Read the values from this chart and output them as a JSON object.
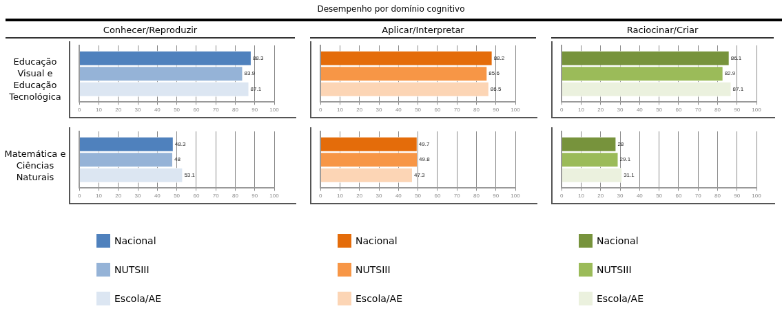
{
  "chart_data": [
    {
      "type": "bar",
      "orientation": "horizontal",
      "title": "Conhecer/Reproduzir",
      "ylabel": "Educação Visual e Educação Tecnológica",
      "annotations": [
        "Desempenho por domínio cognitivo"
      ],
      "categories": [
        null
      ],
      "xlim": [
        0,
        100
      ],
      "xticks": [
        0,
        10,
        20,
        30,
        40,
        50,
        60,
        70,
        80,
        90,
        100
      ],
      "grid": "x",
      "tick_labels": "x",
      "data_labels": true,
      "series": [
        {
          "color": "#4f81bd",
          "values": [
            88.3
          ]
        },
        {
          "color": "#95b3d7",
          "values": [
            83.9
          ]
        },
        {
          "color": "#dce6f2",
          "values": [
            87.1
          ]
        }
      ]
    },
    {
      "type": "bar",
      "orientation": "horizontal",
      "title": "Aplicar/Interpretar",
      "categories": [
        null
      ],
      "xlim": [
        0,
        100
      ],
      "xticks": [
        0,
        10,
        20,
        30,
        40,
        50,
        60,
        70,
        80,
        90,
        100
      ],
      "grid": "x",
      "tick_labels": "x",
      "data_labels": true,
      "series": [
        {
          "color": "#e46c0a",
          "values": [
            88.2
          ]
        },
        {
          "color": "#f79646",
          "values": [
            85.6
          ]
        },
        {
          "color": "#fcd5b5",
          "values": [
            86.5
          ]
        }
      ]
    },
    {
      "type": "bar",
      "orientation": "horizontal",
      "title": "Raciocinar/Criar",
      "categories": [
        null
      ],
      "xlim": [
        0,
        100
      ],
      "xticks": [
        0,
        10,
        20,
        30,
        40,
        50,
        60,
        70,
        80,
        90,
        100
      ],
      "grid": "x",
      "tick_labels": "x",
      "data_labels": true,
      "series": [
        {
          "color": "#77933c",
          "values": [
            86.1
          ]
        },
        {
          "color": "#9bbb59",
          "values": [
            82.9
          ]
        },
        {
          "color": "#ebf1de",
          "values": [
            87.1
          ]
        }
      ]
    },
    {
      "type": "bar",
      "orientation": "horizontal",
      "ylabel": "Matemática e Ciências Naturais",
      "categories": [
        null
      ],
      "xlim": [
        0,
        100
      ],
      "xticks": [
        0,
        10,
        20,
        30,
        40,
        50,
        60,
        70,
        80,
        90,
        100
      ],
      "grid": "x",
      "tick_labels": "x",
      "data_labels": true,
      "legend": "bottom",
      "series": [
        {
          "name": "Nacional",
          "color": "#4f81bd",
          "values": [
            48.3
          ]
        },
        {
          "name": "NUTSIII",
          "color": "#95b3d7",
          "values": [
            48
          ]
        },
        {
          "name": "Escola/AE",
          "color": "#dce6f2",
          "values": [
            53.1
          ]
        }
      ]
    },
    {
      "type": "bar",
      "orientation": "horizontal",
      "categories": [
        null
      ],
      "xlim": [
        0,
        100
      ],
      "xticks": [
        0,
        10,
        20,
        30,
        40,
        50,
        60,
        70,
        80,
        90,
        100
      ],
      "grid": "x",
      "tick_labels": "x",
      "data_labels": true,
      "legend": "bottom",
      "series": [
        {
          "name": "Nacional",
          "color": "#e46c0a",
          "values": [
            49.7
          ]
        },
        {
          "name": "NUTSIII",
          "color": "#f79646",
          "values": [
            49.8
          ]
        },
        {
          "name": "Escola/AE",
          "color": "#fcd5b5",
          "values": [
            47.3
          ]
        }
      ]
    },
    {
      "type": "bar",
      "orientation": "horizontal",
      "categories": [
        null
      ],
      "xlim": [
        0,
        100
      ],
      "xticks": [
        0,
        10,
        20,
        30,
        40,
        50,
        60,
        70,
        80,
        90,
        100
      ],
      "grid": "x",
      "tick_labels": "x",
      "data_labels": true,
      "legend": "bottom",
      "series": [
        {
          "name": "Nacional",
          "color": "#77933c",
          "values": [
            28
          ]
        },
        {
          "name": "NUTSIII",
          "color": "#9bbb59",
          "values": [
            29.1
          ]
        },
        {
          "name": "Escola/AE",
          "color": "#ebf1de",
          "values": [
            31.1
          ]
        }
      ]
    }
  ]
}
